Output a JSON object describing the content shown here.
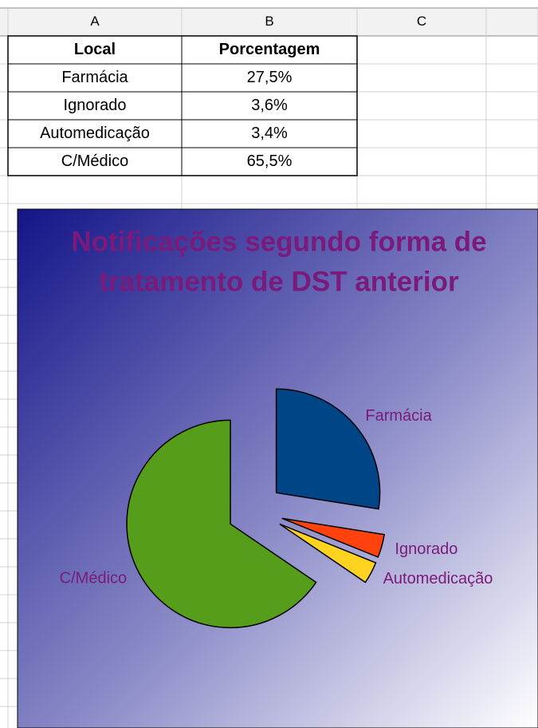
{
  "spreadsheet": {
    "columns": [
      "A",
      "B",
      "C"
    ],
    "rows": [
      [
        "Local",
        "Porcentagem"
      ],
      [
        "Farmácia",
        "27,5%"
      ],
      [
        "Ignorado",
        "3,6%"
      ],
      [
        "Automedicação",
        "3,4%"
      ],
      [
        "C/Médico",
        "65,5%"
      ]
    ]
  },
  "chart_data": {
    "type": "pie",
    "title": [
      "Notificações segundo forma de",
      "tratamento de DST anterior"
    ],
    "categories": [
      "Farmácia",
      "Ignorado",
      "Automedicação",
      "C/Médico"
    ],
    "values": [
      27.5,
      3.6,
      3.4,
      65.5
    ],
    "colors": [
      "#004586",
      "#ff420e",
      "#ffd320",
      "#579d1c"
    ]
  }
}
